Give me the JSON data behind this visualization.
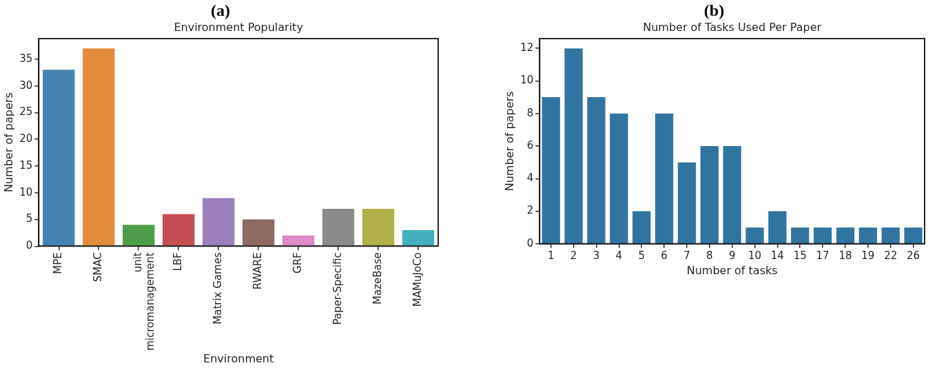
{
  "chart_data": [
    {
      "type": "bar",
      "title": "(a)",
      "subtitle": "Environment Popularity",
      "xlabel": "Environment",
      "ylabel": "Number of papers",
      "categories": [
        "MPE",
        "SMAC",
        "unit micromanagement",
        "LBF",
        "Matrix Games",
        "RWARE",
        "GRF",
        "Paper-Specific",
        "MazeBase",
        "MAMuJoCo"
      ],
      "values": [
        33,
        37,
        4,
        6,
        9,
        5,
        2,
        7,
        7,
        3
      ],
      "colors": [
        "#4682ae",
        "#e38c3e",
        "#4f9d4b",
        "#c44e52",
        "#9b80bc",
        "#8c6b62",
        "#db8cc5",
        "#8a8a8a",
        "#b1b04a",
        "#42b0be"
      ],
      "ylim": [
        0,
        38.85
      ],
      "yticks": [
        0,
        5,
        10,
        15,
        20,
        25,
        30,
        35
      ]
    },
    {
      "type": "bar",
      "title": "(b)",
      "subtitle": "Number of Tasks Used Per Paper",
      "xlabel": "Number of tasks",
      "ylabel": "Number of papers",
      "categories": [
        "1",
        "2",
        "3",
        "4",
        "5",
        "6",
        "7",
        "8",
        "9",
        "10",
        "14",
        "15",
        "17",
        "18",
        "19",
        "22",
        "26"
      ],
      "values": [
        9,
        12,
        9,
        8,
        2,
        8,
        5,
        6,
        6,
        1,
        2,
        1,
        1,
        1,
        1,
        1,
        1
      ],
      "color": "#3274a1",
      "ylim": [
        0,
        12.6
      ],
      "yticks": [
        0,
        2,
        4,
        6,
        8,
        10,
        12
      ]
    }
  ]
}
